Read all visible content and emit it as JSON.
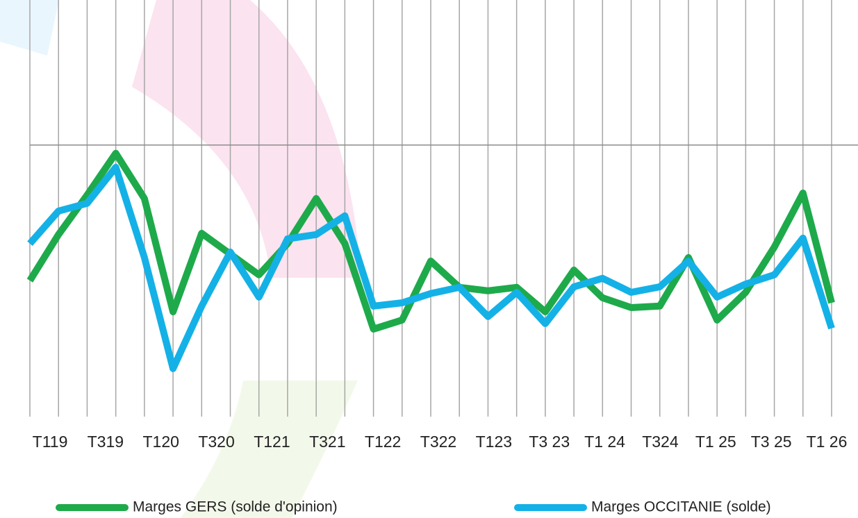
{
  "chart_data": {
    "type": "line",
    "categories": [
      "T119",
      null,
      "T319",
      null,
      "T120",
      null,
      "T320",
      null,
      "T121",
      null,
      "T321",
      null,
      "T122",
      null,
      "T322",
      null,
      "T123",
      null,
      "T3 23",
      null,
      "T1 24",
      null,
      "T324",
      null,
      "T1 25",
      null,
      "T3 25",
      null,
      "T1 26"
    ],
    "series": [
      {
        "name": "Marges GERS (solde d'opinion)",
        "color": "#1eaa4b",
        "values": [
          -5.42,
          -3.58,
          -2.0,
          -0.33,
          -2.14,
          -6.67,
          -3.53,
          -4.36,
          -5.19,
          -3.94,
          -2.14,
          -3.94,
          -7.36,
          -7.0,
          -4.64,
          -5.69,
          -5.83,
          -5.69,
          -6.67,
          -5.0,
          -6.11,
          -6.5,
          -6.44,
          -4.5,
          -7.0,
          -5.89,
          -4.08,
          -1.92,
          -6.31
        ]
      },
      {
        "name": "Marges OCCITANIE (solde)",
        "color": "#14b1e7",
        "values": [
          -3.94,
          -2.64,
          -2.33,
          -0.89,
          -4.5,
          -8.94,
          -6.44,
          -4.28,
          -6.08,
          -3.75,
          -3.58,
          -2.83,
          -6.44,
          -6.31,
          -5.94,
          -5.69,
          -6.86,
          -5.89,
          -7.14,
          -5.67,
          -5.33,
          -5.89,
          -5.67,
          -4.64,
          -6.08,
          -5.56,
          -5.19,
          -3.72,
          -7.33
        ]
      }
    ],
    "ylim": [
      -10.5,
      5.8
    ],
    "yticks": [
      0
    ],
    "grid": true
  }
}
